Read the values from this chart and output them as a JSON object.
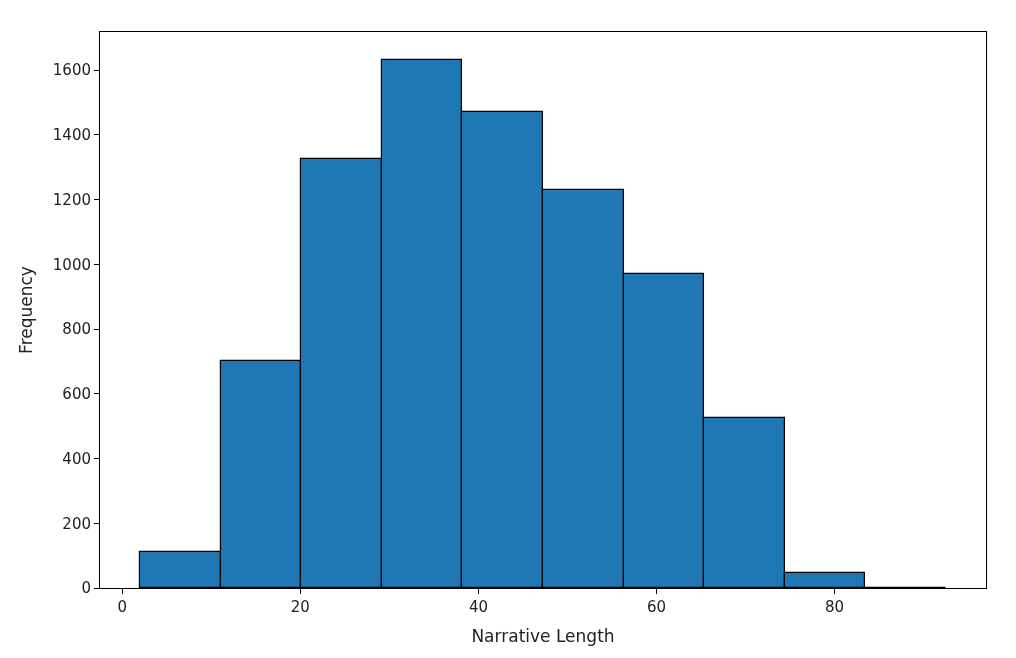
{
  "chart_data": {
    "type": "histogram",
    "xlabel": "Narrative Length",
    "ylabel": "Frequency",
    "bins": [
      2,
      11.05,
      20.1,
      29.15,
      38.2,
      47.25,
      56.3,
      65.35,
      74.4,
      83.45,
      92.5
    ],
    "values": [
      110,
      700,
      1325,
      1630,
      1470,
      1230,
      970,
      525,
      45,
      0
    ],
    "color": "#1f77b4",
    "xlim": [
      -2.5,
      97
    ],
    "xticks": [
      0,
      20,
      40,
      60,
      80
    ],
    "ylim": [
      0,
      1718
    ],
    "yticks": [
      0,
      200,
      400,
      600,
      800,
      1000,
      1200,
      1400,
      1600
    ]
  }
}
